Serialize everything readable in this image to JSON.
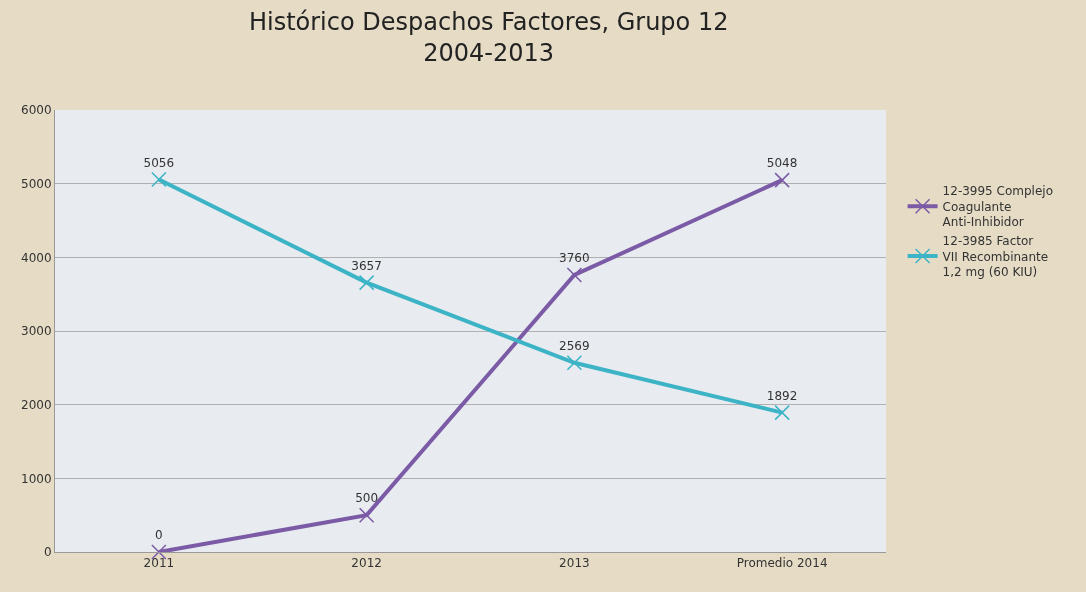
{
  "chart_data": {
    "type": "line",
    "title": "Histórico Despachos Factores, Grupo 12\n2004-2013",
    "categories": [
      "2011",
      "2012",
      "2013",
      "Promedio 2014"
    ],
    "series": [
      {
        "name": "12-3995 Complejo Coagulante Anti-Inhibidor",
        "color": "#7b5aa6",
        "values": [
          0,
          500,
          3760,
          5048
        ]
      },
      {
        "name": "12-3985 Factor VII Recombinante 1,2 mg (60 KIU)",
        "color": "#3cb4c6",
        "values": [
          5056,
          3657,
          2569,
          1892
        ]
      }
    ],
    "ylim": [
      0,
      6000
    ],
    "yticks": [
      0,
      1000,
      2000,
      3000,
      4000,
      5000,
      6000
    ],
    "grid": "y",
    "legend": "right",
    "marker": "cross",
    "line_style": "solid",
    "data_labels": true
  }
}
